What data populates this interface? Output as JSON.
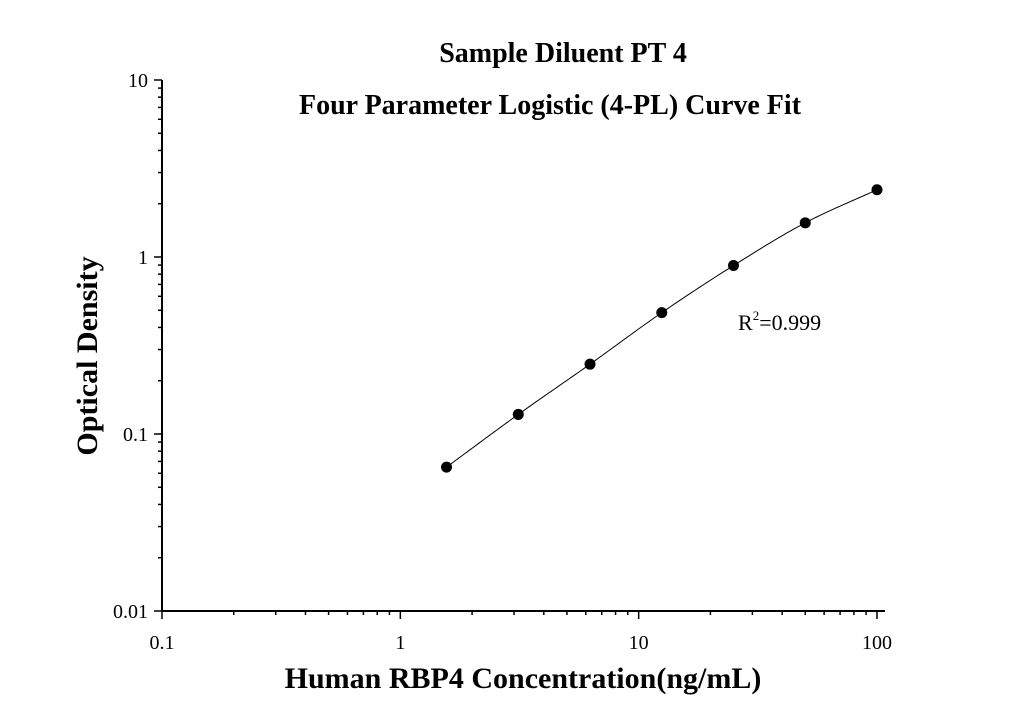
{
  "chart_data": {
    "type": "scatter",
    "title": "Sample Diluent PT 4",
    "subtitle": "Four Parameter Logistic (4-PL) Curve Fit",
    "xlabel": "Human RBP4 Concentration(ng/mL)",
    "ylabel": "Optical Density",
    "xscale": "log",
    "yscale": "log",
    "xlim": [
      0.1,
      100
    ],
    "ylim": [
      0.01,
      10
    ],
    "xticks": [
      "0.1",
      "1",
      "10",
      "100"
    ],
    "yticks": [
      "0.01",
      "0.1",
      "1",
      "10"
    ],
    "grid": false,
    "series": [
      {
        "x": [
          1.5625,
          3.125,
          6.25,
          12.5,
          25,
          50,
          100
        ],
        "y": [
          0.065,
          0.129,
          0.248,
          0.485,
          0.895,
          1.56,
          2.4
        ]
      }
    ],
    "curve_fit": {
      "type": "4PL",
      "color": "#000000"
    },
    "annotation": {
      "base": "R",
      "sup": "2",
      "text": "=0.999"
    }
  }
}
